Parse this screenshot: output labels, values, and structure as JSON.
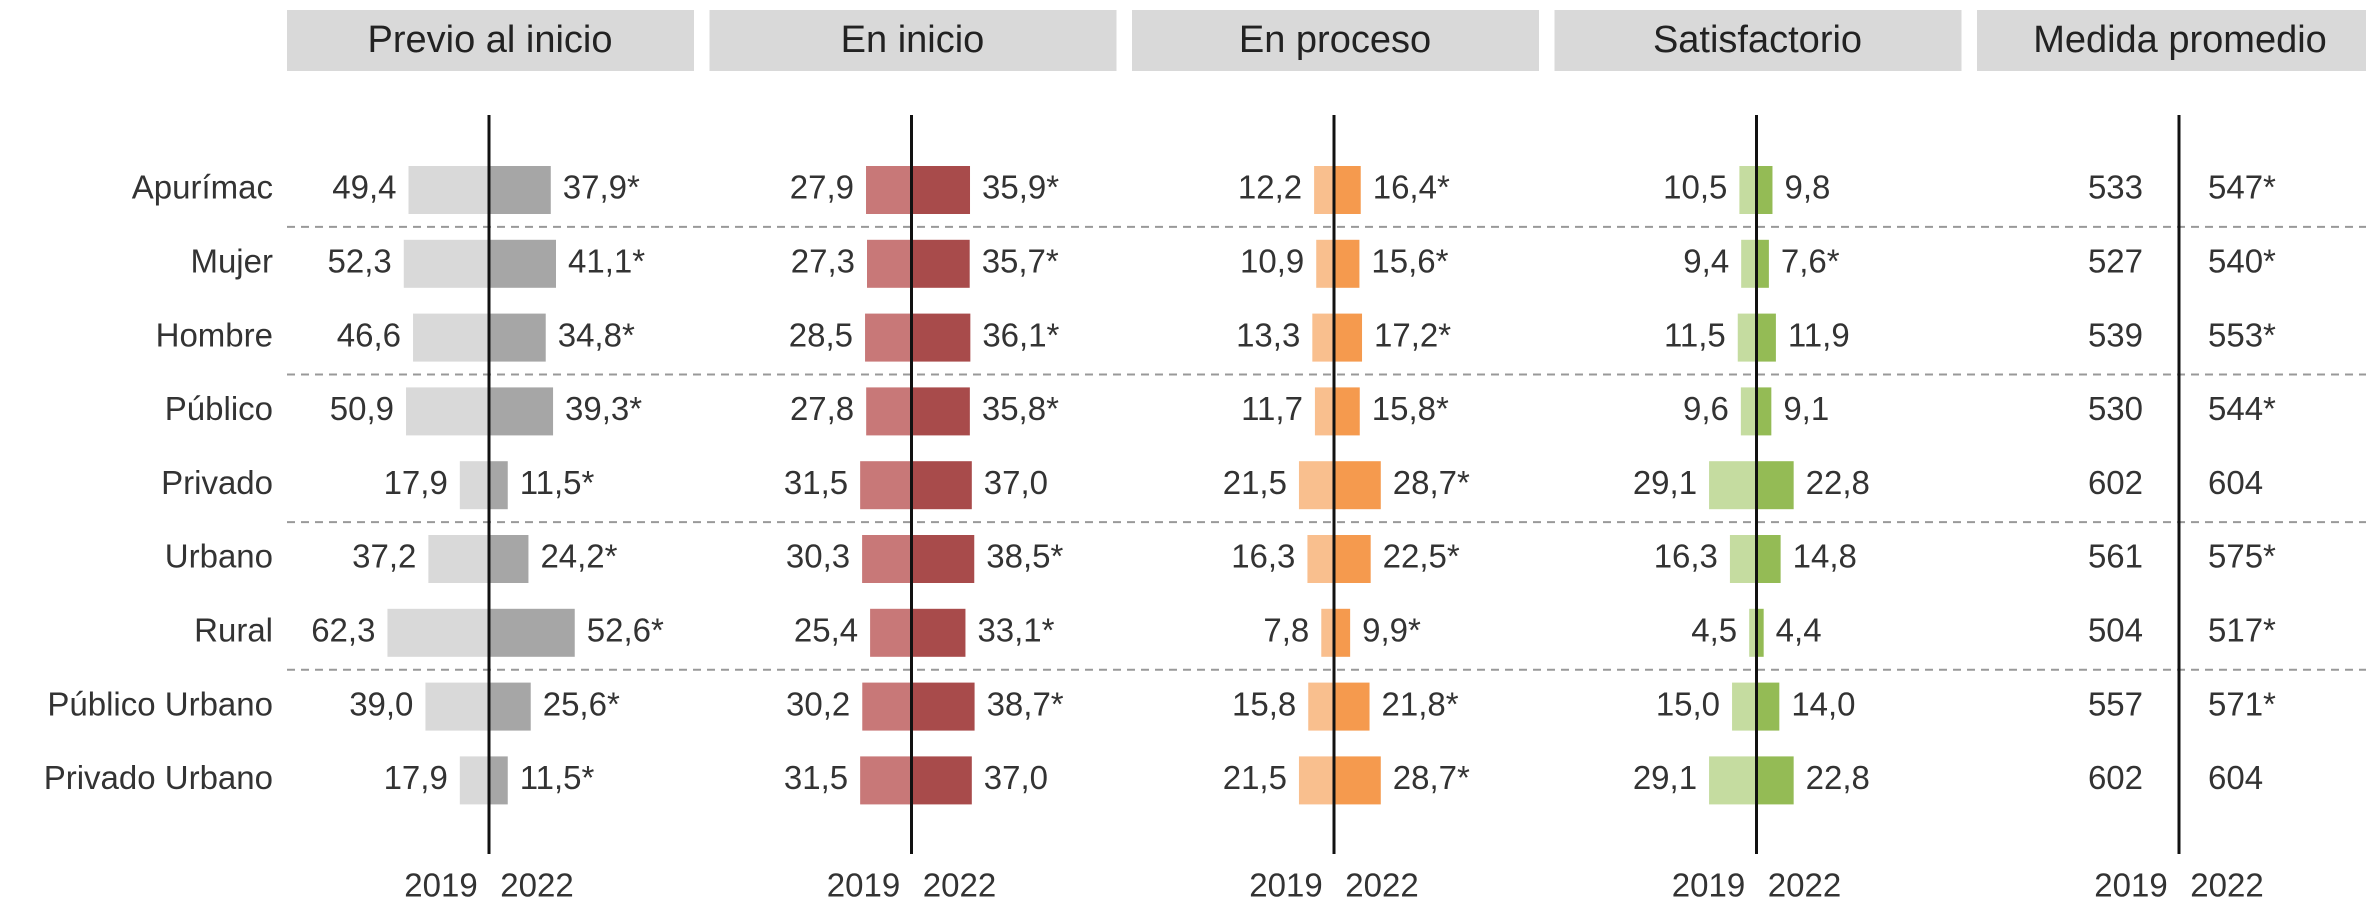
{
  "chart_data": {
    "type": "butterfly",
    "categories": [
      "Apurímac",
      "Mujer",
      "Hombre",
      "Público",
      "Privado",
      "Urbano",
      "Rural",
      "Público Urbano",
      "Privado Urbano"
    ],
    "separators_after": [
      0,
      2,
      4,
      6
    ],
    "panels": [
      {
        "title": "Previo al inicio",
        "show_bars": true,
        "series": [
          {
            "name": "2019",
            "color": "#d9d9d9",
            "values": [
              49.4,
              52.3,
              46.6,
              50.9,
              17.9,
              37.2,
              62.3,
              39.0,
              17.9
            ],
            "value_labels": [
              "49,4",
              "52,3",
              "46,6",
              "50,9",
              "17,9",
              "37,2",
              "62,3",
              "39,0",
              "17,9"
            ]
          },
          {
            "name": "2022",
            "color": "#a6a6a6",
            "values": [
              37.9,
              41.1,
              34.8,
              39.3,
              11.5,
              24.2,
              52.6,
              25.6,
              11.5
            ],
            "value_labels": [
              "37,9*",
              "41,1*",
              "34,8*",
              "39,3*",
              "11,5*",
              "24,2*",
              "52,6*",
              "25,6*",
              "11,5*"
            ]
          }
        ]
      },
      {
        "title": "En inicio",
        "show_bars": true,
        "series": [
          {
            "name": "2019",
            "color": "#c87878",
            "values": [
              27.9,
              27.3,
              28.5,
              27.8,
              31.5,
              30.3,
              25.4,
              30.2,
              31.5
            ],
            "value_labels": [
              "27,9",
              "27,3",
              "28,5",
              "27,8",
              "31,5",
              "30,3",
              "25,4",
              "30,2",
              "31,5"
            ]
          },
          {
            "name": "2022",
            "color": "#a84b4b",
            "values": [
              35.9,
              35.7,
              36.1,
              35.8,
              37.0,
              38.5,
              33.1,
              38.7,
              37.0
            ],
            "value_labels": [
              "35,9*",
              "35,7*",
              "36,1*",
              "35,8*",
              "37,0",
              "38,5*",
              "33,1*",
              "38,7*",
              "37,0"
            ]
          }
        ]
      },
      {
        "title": "En proceso",
        "show_bars": true,
        "series": [
          {
            "name": "2019",
            "color": "#f9bf8e",
            "values": [
              12.2,
              10.9,
              13.3,
              11.7,
              21.5,
              16.3,
              7.8,
              15.8,
              21.5
            ],
            "value_labels": [
              "12,2",
              "10,9",
              "13,3",
              "11,7",
              "21,5",
              "16,3",
              "7,8",
              "15,8",
              "21,5"
            ]
          },
          {
            "name": "2022",
            "color": "#f59a4e",
            "values": [
              16.4,
              15.6,
              17.2,
              15.8,
              28.7,
              22.5,
              9.9,
              21.8,
              28.7
            ],
            "value_labels": [
              "16,4*",
              "15,6*",
              "17,2*",
              "15,8*",
              "28,7*",
              "22,5*",
              "9,9*",
              "21,8*",
              "28,7*"
            ]
          }
        ]
      },
      {
        "title": "Satisfactorio",
        "show_bars": true,
        "series": [
          {
            "name": "2019",
            "color": "#c5dca0",
            "values": [
              10.5,
              9.4,
              11.5,
              9.6,
              29.1,
              16.3,
              4.5,
              15.0,
              29.1
            ],
            "value_labels": [
              "10,5",
              "9,4",
              "11,5",
              "9,6",
              "29,1",
              "16,3",
              "4,5",
              "15,0",
              "29,1"
            ]
          },
          {
            "name": "2022",
            "color": "#94bb55",
            "values": [
              9.8,
              7.6,
              11.9,
              9.1,
              22.8,
              14.8,
              4.4,
              14.0,
              22.8
            ],
            "value_labels": [
              "9,8",
              "7,6*",
              "11,9",
              "9,1",
              "22,8",
              "14,8",
              "4,4",
              "14,0",
              "22,8"
            ]
          }
        ]
      },
      {
        "title": "Medida promedio",
        "show_bars": false,
        "series": [
          {
            "name": "2019",
            "values": [
              533,
              527,
              539,
              530,
              602,
              561,
              504,
              557,
              602
            ],
            "value_labels": [
              "533",
              "527",
              "539",
              "530",
              "602",
              "561",
              "504",
              "557",
              "602"
            ]
          },
          {
            "name": "2022",
            "values": [
              547,
              540,
              553,
              544,
              604,
              575,
              517,
              571,
              604
            ],
            "value_labels": [
              "547*",
              "540*",
              "553*",
              "544*",
              "604",
              "575*",
              "517*",
              "571*",
              "604"
            ]
          }
        ]
      }
    ]
  }
}
